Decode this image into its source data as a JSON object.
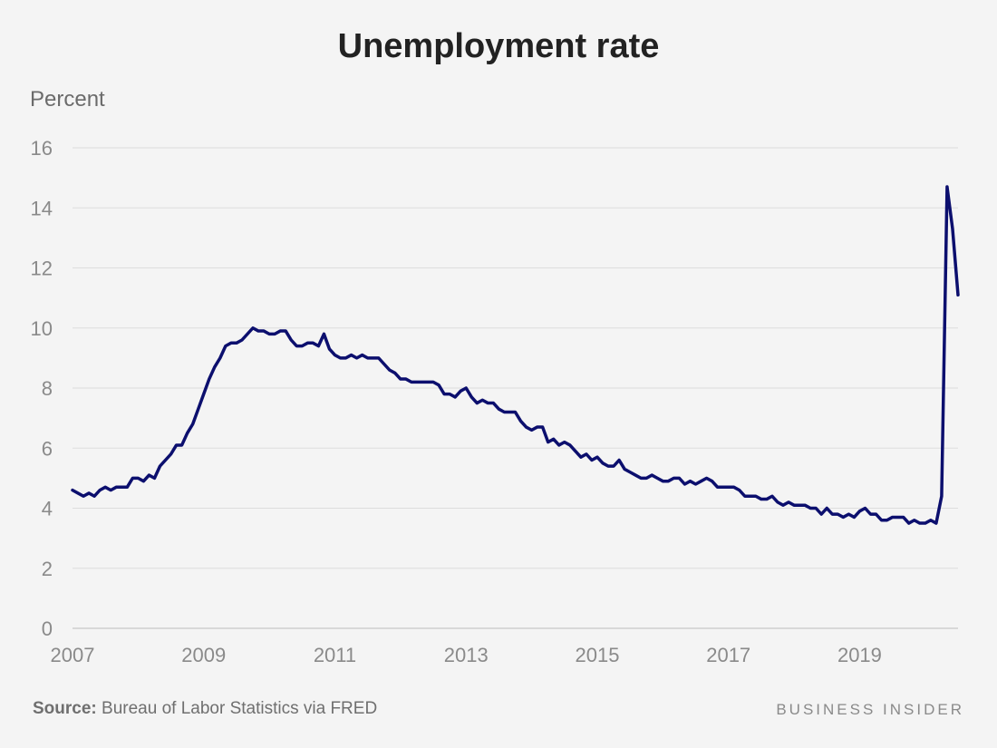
{
  "chart_data": {
    "type": "line",
    "title": "Unemployment rate",
    "ylabel": "Percent",
    "xlabel": "",
    "ylim": [
      0,
      16
    ],
    "xlim": [
      2007,
      2020.5
    ],
    "y_ticks": [
      0,
      2,
      4,
      6,
      8,
      10,
      12,
      14,
      16
    ],
    "x_ticks": [
      2007,
      2009,
      2011,
      2013,
      2015,
      2017,
      2019
    ],
    "grid": true,
    "line_color": "#0c0f6e",
    "x_start": "2007-01",
    "x_step": "month",
    "series": [
      {
        "values": [
          4.6,
          4.5,
          4.4,
          4.5,
          4.4,
          4.6,
          4.7,
          4.6,
          4.7,
          4.7,
          4.7,
          5.0,
          5.0,
          4.9,
          5.1,
          5.0,
          5.4,
          5.6,
          5.8,
          6.1,
          6.1,
          6.5,
          6.8,
          7.3,
          7.8,
          8.3,
          8.7,
          9.0,
          9.4,
          9.5,
          9.5,
          9.6,
          9.8,
          10.0,
          9.9,
          9.9,
          9.8,
          9.8,
          9.9,
          9.9,
          9.6,
          9.4,
          9.4,
          9.5,
          9.5,
          9.4,
          9.8,
          9.3,
          9.1,
          9.0,
          9.0,
          9.1,
          9.0,
          9.1,
          9.0,
          9.0,
          9.0,
          8.8,
          8.6,
          8.5,
          8.3,
          8.3,
          8.2,
          8.2,
          8.2,
          8.2,
          8.2,
          8.1,
          7.8,
          7.8,
          7.7,
          7.9,
          8.0,
          7.7,
          7.5,
          7.6,
          7.5,
          7.5,
          7.3,
          7.2,
          7.2,
          7.2,
          6.9,
          6.7,
          6.6,
          6.7,
          6.7,
          6.2,
          6.3,
          6.1,
          6.2,
          6.1,
          5.9,
          5.7,
          5.8,
          5.6,
          5.7,
          5.5,
          5.4,
          5.4,
          5.6,
          5.3,
          5.2,
          5.1,
          5.0,
          5.0,
          5.1,
          5.0,
          4.9,
          4.9,
          5.0,
          5.0,
          4.8,
          4.9,
          4.8,
          4.9,
          5.0,
          4.9,
          4.7,
          4.7,
          4.7,
          4.7,
          4.6,
          4.4,
          4.4,
          4.4,
          4.3,
          4.3,
          4.4,
          4.2,
          4.1,
          4.2,
          4.1,
          4.1,
          4.1,
          4.0,
          4.0,
          3.8,
          4.0,
          3.8,
          3.8,
          3.7,
          3.8,
          3.7,
          3.9,
          4.0,
          3.8,
          3.8,
          3.6,
          3.6,
          3.7,
          3.7,
          3.7,
          3.5,
          3.6,
          3.5,
          3.5,
          3.6,
          3.5,
          4.4,
          14.7,
          13.3,
          11.1
        ]
      }
    ]
  },
  "footer": {
    "source_label": "Source:",
    "source_text": "Bureau of Labor Statistics via FRED",
    "brand": "BUSINESS INSIDER"
  }
}
